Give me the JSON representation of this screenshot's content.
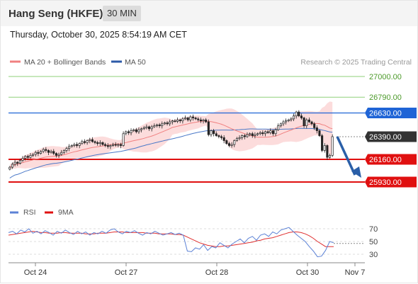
{
  "header": {
    "title": "Hang Seng (HKFE)",
    "interval": "30 MIN",
    "datetime": "Thursday, October 30, 2025 8:54:19 AM CET"
  },
  "legend": {
    "ma20": "MA 20 + Bollinger Bands",
    "ma50": "MA 50",
    "credit": "Research © 2025 Trading Central"
  },
  "rsi_legend": {
    "rsi": "RSI",
    "ma": "9MA"
  },
  "colors": {
    "resistance": "#8fd07a",
    "resistance_text": "#4c9a2a",
    "pivot": "#1f64d6",
    "support": "#e01010",
    "current": "#333333",
    "ma20": "#f08080",
    "ma50": "#4a78c8",
    "bollinger": "#fcd8d8",
    "rsi": "#5c82d6",
    "rsi_ma": "#e03030",
    "arrow": "#2a5fa8"
  },
  "chart_data": [
    {
      "type": "candlestick",
      "levels": [
        {
          "value": 27000.0,
          "label": "27000.00",
          "kind": "resistance"
        },
        {
          "value": 26790.0,
          "label": "26790.00",
          "kind": "resistance"
        },
        {
          "value": 26630.0,
          "label": "26630.00",
          "kind": "pivot"
        },
        {
          "value": 26390.0,
          "label": "26390.00",
          "kind": "current"
        },
        {
          "value": 26160.0,
          "label": "26160.00",
          "kind": "support"
        },
        {
          "value": 25930.0,
          "label": "25930.00",
          "kind": "support"
        }
      ],
      "x_ticks": [
        "Oct 24",
        "Oct 27",
        "Oct 28",
        "Oct 30",
        "Nov 7"
      ],
      "ylim": [
        25900,
        27100
      ],
      "close": [
        26080,
        26110,
        26130,
        26120,
        26150,
        26170,
        26190,
        26180,
        26200,
        26210,
        26230,
        26220,
        26240,
        26260,
        26250,
        26230,
        26240,
        26220,
        26200,
        26210,
        26230,
        26250,
        26270,
        26290,
        26300,
        26310,
        26300,
        26320,
        26340,
        26330,
        26350,
        26360,
        26340,
        26330,
        26320,
        26330,
        26310,
        26300,
        26290,
        26300,
        26310,
        26305,
        26310,
        26300,
        26420,
        26440,
        26430,
        26450,
        26460,
        26440,
        26460,
        26470,
        26480,
        26490,
        26470,
        26490,
        26500,
        26510,
        26500,
        26520,
        26530,
        26520,
        26540,
        26550,
        26545,
        26560,
        26550,
        26570,
        26580,
        26560,
        26590,
        26580,
        26570,
        26560,
        26550,
        26560,
        26540,
        26410,
        26450,
        26420,
        26400,
        26390,
        26380,
        26350,
        26320,
        26300,
        26310,
        26350,
        26370,
        26380,
        26400,
        26390,
        26410,
        26420,
        26400,
        26410,
        26420,
        26430,
        26420,
        26440,
        26430,
        26450,
        26420,
        26460,
        26500,
        26520,
        26540,
        26550,
        26560,
        26570,
        26600,
        26640,
        26600,
        26580,
        26500,
        26560,
        26540,
        26520,
        26480,
        26450,
        26400,
        26250,
        26300,
        26180,
        26200,
        26390
      ]
    },
    {
      "type": "line",
      "title": "RSI",
      "y_ticks": [
        70,
        50,
        30
      ],
      "ylim": [
        20,
        80
      ],
      "rsi": [
        64,
        66,
        62,
        68,
        65,
        70,
        63,
        66,
        62,
        67,
        64,
        60,
        66,
        63,
        68,
        64,
        61,
        66,
        62,
        65,
        60,
        64,
        62,
        66,
        63,
        68,
        70,
        65,
        62,
        66,
        64,
        67,
        63,
        60,
        64,
        62,
        66,
        63,
        60,
        62,
        64,
        61,
        63,
        60,
        35,
        34,
        40,
        38,
        45,
        36,
        42,
        40,
        48,
        44,
        40,
        46,
        50,
        54,
        48,
        55,
        58,
        52,
        60,
        62,
        58,
        65,
        62,
        68,
        70,
        72,
        66,
        60,
        55,
        50,
        42,
        35,
        26,
        27,
        36,
        50,
        48
      ],
      "ma": [
        60,
        61,
        62,
        63,
        64,
        65,
        66,
        65,
        64,
        64,
        63,
        63,
        63,
        64,
        64,
        63,
        63,
        63,
        63,
        62,
        62,
        62,
        63,
        63,
        63,
        64,
        65,
        65,
        65,
        64,
        64,
        64,
        64,
        64,
        63,
        63,
        63,
        62,
        62,
        62,
        62,
        61,
        61,
        60,
        57,
        54,
        51,
        48,
        46,
        44,
        43,
        42,
        42,
        43,
        43,
        44,
        45,
        46,
        47,
        48,
        49,
        51,
        52,
        54,
        55,
        56,
        58,
        60,
        62,
        64,
        65,
        65,
        64,
        62,
        59,
        55,
        50,
        46,
        42,
        42,
        42
      ]
    }
  ]
}
